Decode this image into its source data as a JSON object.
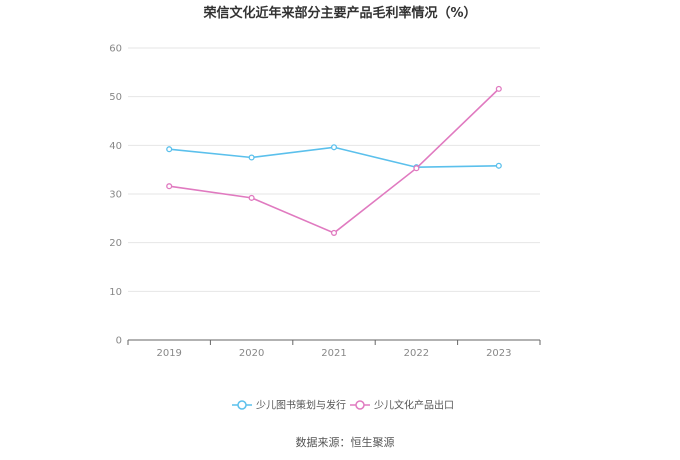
{
  "chart_data": {
    "type": "line",
    "title": "荣信文化近年来部分主要产品毛利率情况（%）",
    "xlabel": "",
    "ylabel": "",
    "categories": [
      "2019",
      "2020",
      "2021",
      "2022",
      "2023"
    ],
    "ylim": [
      0,
      60
    ],
    "yticks": [
      "0",
      "10",
      "20",
      "30",
      "40",
      "50",
      "60"
    ],
    "grid": true,
    "legend_position": "bottom",
    "series": [
      {
        "name": "少儿图书策划与发行",
        "color": "#5bc0ec",
        "values": [
          39.2,
          37.5,
          39.6,
          35.5,
          35.8
        ]
      },
      {
        "name": "少儿文化产品出口",
        "color": "#e07ac0",
        "values": [
          31.6,
          29.2,
          22.0,
          35.3,
          51.6
        ]
      }
    ]
  },
  "source_text": "数据来源：恒生聚源"
}
